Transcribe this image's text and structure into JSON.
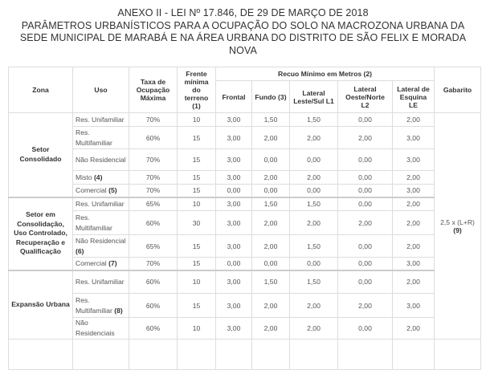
{
  "title_lines": [
    "ANEXO II - LEI Nº 17.846, DE 29 DE MARÇO DE 2018",
    "PARÂMETROS URBANÍSTICOS PARA A OCUPAÇÃO DO SOLO NA MACROZONA URBANA DA",
    "SEDE MUNICIPAL DE MARABÁ E NA ÁREA URBANA DO DISTRITO DE SÃO FELIX E MORADA",
    "NOVA"
  ],
  "headers": {
    "zona": "Zona",
    "uso": "Uso",
    "taxa": "Taxa de Ocupação Máxima",
    "frente": "Frente mínima do terreno (1)",
    "recuo": "Recuo Mínimo em Metros (2)",
    "frontal": "Frontal",
    "fundo": "Fundo (3)",
    "l1": "Lateral Leste/Sul L1",
    "l2": "Lateral Oeste/Norte L2",
    "le": "Lateral de Esquina LE",
    "gabarito": "Gabarito"
  },
  "gabarito_value": "2,5 x (L+R)",
  "gabarito_note": "(9)",
  "zones": [
    {
      "name": "Setor Consolidado",
      "rows": [
        {
          "uso": "Res. Unifamiliar",
          "note": "",
          "vals": [
            "70%",
            "10",
            "3,00",
            "1,50",
            "1,50",
            "0,00",
            "2,00"
          ]
        },
        {
          "uso": "Res. Multifamiliar",
          "note": "",
          "vals": [
            "60%",
            "15",
            "3,00",
            "2,00",
            "2,00",
            "2,00",
            "3,00"
          ]
        },
        {
          "uso": "Não Residencial",
          "note": "",
          "vals": [
            "70%",
            "15",
            "3,00",
            "0,00",
            "0,00",
            "0,00",
            "3,00"
          ]
        },
        {
          "uso": "Misto",
          "note": "(4)",
          "vals": [
            "70%",
            "15",
            "3,00",
            "2,00",
            "2,00",
            "0,00",
            "2,00"
          ]
        },
        {
          "uso": "Comercial",
          "note": "(5)",
          "vals": [
            "70%",
            "15",
            "0,00",
            "0,00",
            "0,00",
            "0,00",
            "3,00"
          ]
        }
      ]
    },
    {
      "name": "Setor em Consolidação, Uso Controlado, Recuperação e Qualificação",
      "rows": [
        {
          "uso": "Res. Unifamiliar",
          "note": "",
          "vals": [
            "65%",
            "10",
            "3,00",
            "1,50",
            "1,50",
            "0,00",
            "2,00"
          ]
        },
        {
          "uso": "Res. Multifamiliar",
          "note": "",
          "vals": [
            "60%",
            "30",
            "3,00",
            "2,00",
            "2,00",
            "2,00",
            "2,00"
          ]
        },
        {
          "uso": "Não Residencial",
          "note": "(6)",
          "vals": [
            "65%",
            "15",
            "3,00",
            "2,00",
            "1,50",
            "0,00",
            "2,00"
          ]
        },
        {
          "uso": "Comercial",
          "note": "(7)",
          "vals": [
            "70%",
            "15",
            "0,00",
            "0,00",
            "0,00",
            "0,00",
            "3,00"
          ]
        }
      ]
    },
    {
      "name": "Expansão Urbana",
      "rows": [
        {
          "uso": "Res. Unifamiliar",
          "note": "",
          "vals": [
            "60%",
            "10",
            "3,00",
            "1,50",
            "1,50",
            "0,00",
            "2,00"
          ]
        },
        {
          "uso": "Res. Multifamiliar",
          "note": "(8)",
          "vals": [
            "60%",
            "15",
            "3,00",
            "2,00",
            "2,00",
            "2,00",
            "3,00"
          ]
        },
        {
          "uso": "Não Residenciais",
          "note": "",
          "vals": [
            "60%",
            "10",
            "3,00",
            "2,00",
            "2,00",
            "0,00",
            "2,00"
          ]
        }
      ]
    }
  ]
}
